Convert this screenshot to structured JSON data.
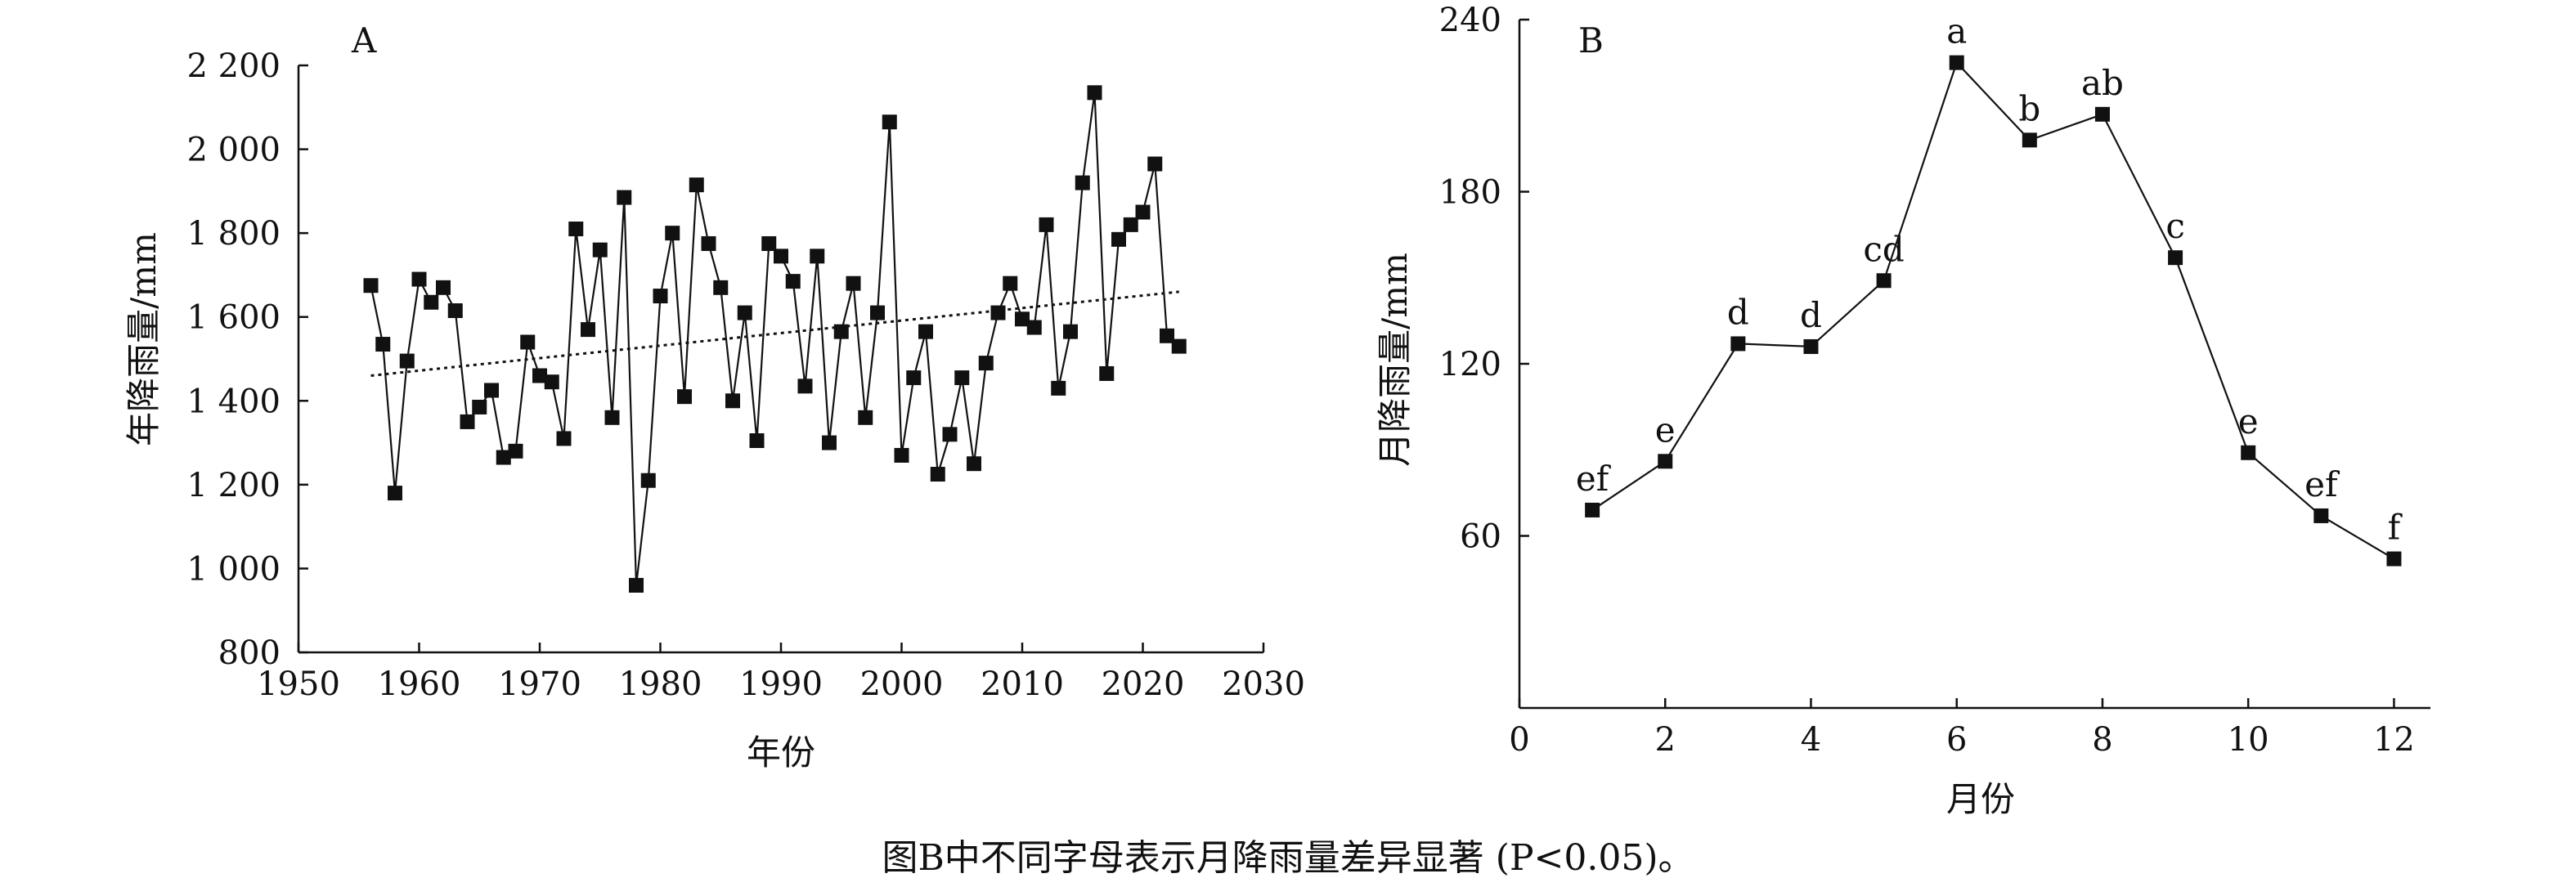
{
  "caption": "图B中不同字母表示月降雨量差异显著 (P<0.05)。",
  "chart_data": [
    {
      "type": "line",
      "panel": "A",
      "title": "",
      "xlabel": "年份",
      "ylabel": "年降雨量/mm",
      "xlim": [
        1950,
        2030
      ],
      "ylim": [
        800,
        2200
      ],
      "xticks": [
        1950,
        1960,
        1970,
        1980,
        1990,
        2000,
        2010,
        2020,
        2030
      ],
      "xtick_labels": [
        "1950",
        "1960",
        "1970",
        "1980",
        "1990",
        "2000",
        "2010",
        "2020",
        "2030"
      ],
      "yticks": [
        800,
        1000,
        1200,
        1400,
        1600,
        1800,
        2000,
        2200
      ],
      "ytick_labels": [
        "800",
        "1 000",
        "1 200",
        "1 400",
        "1 600",
        "1 800",
        "2 000",
        "2 200"
      ],
      "grid": false,
      "series": [
        {
          "name": "年降雨量",
          "marker": "square",
          "x": [
            1956,
            1957,
            1958,
            1959,
            1960,
            1961,
            1962,
            1963,
            1964,
            1965,
            1966,
            1967,
            1968,
            1969,
            1970,
            1971,
            1972,
            1973,
            1974,
            1975,
            1976,
            1977,
            1978,
            1979,
            1980,
            1981,
            1982,
            1983,
            1984,
            1985,
            1986,
            1987,
            1988,
            1989,
            1990,
            1991,
            1992,
            1993,
            1994,
            1995,
            1996,
            1997,
            1998,
            1999,
            2000,
            2001,
            2002,
            2003,
            2004,
            2005,
            2006,
            2007,
            2008,
            2009,
            2010,
            2011,
            2012,
            2013,
            2014,
            2015,
            2016,
            2017,
            2018,
            2019,
            2020,
            2021,
            2022,
            2023
          ],
          "y": [
            1675,
            1535,
            1180,
            1495,
            1690,
            1635,
            1670,
            1615,
            1350,
            1385,
            1425,
            1265,
            1280,
            1540,
            1460,
            1445,
            1310,
            1810,
            1570,
            1760,
            1360,
            1885,
            960,
            1210,
            1650,
            1800,
            1410,
            1915,
            1775,
            1670,
            1400,
            1610,
            1305,
            1775,
            1745,
            1685,
            1435,
            1745,
            1300,
            1565,
            1680,
            1360,
            1610,
            2065,
            1270,
            1455,
            1565,
            1225,
            1320,
            1455,
            1250,
            1490,
            1610,
            1680,
            1595,
            1575,
            1820,
            1430,
            1565,
            1920,
            2135,
            1465,
            1785,
            1820,
            1850,
            1965,
            1555,
            1530
          ]
        },
        {
          "name": "线性趋势",
          "style": "dotted",
          "x": [
            1956,
            2023
          ],
          "y": [
            1460,
            1660
          ]
        }
      ]
    },
    {
      "type": "line",
      "panel": "B",
      "title": "",
      "xlabel": "月份",
      "ylabel": "月降雨量/mm",
      "xlim": [
        0,
        12.5
      ],
      "ylim": [
        0,
        240
      ],
      "xticks": [
        0,
        2,
        4,
        6,
        8,
        10,
        12
      ],
      "xtick_labels": [
        "0",
        "2",
        "4",
        "6",
        "8",
        "10",
        "12"
      ],
      "yticks": [
        60,
        120,
        180,
        240
      ],
      "ytick_labels": [
        "60",
        "120",
        "180",
        "240"
      ],
      "grid": false,
      "series": [
        {
          "name": "月降雨量",
          "marker": "square",
          "x": [
            1,
            2,
            3,
            4,
            5,
            6,
            7,
            8,
            9,
            10,
            11,
            12
          ],
          "y": [
            69,
            86,
            127,
            126,
            149,
            225,
            198,
            207,
            157,
            89,
            67,
            52
          ],
          "labels": [
            "ef",
            "e",
            "d",
            "d",
            "cd",
            "a",
            "b",
            "ab",
            "c",
            "e",
            "ef",
            "f"
          ]
        }
      ]
    }
  ]
}
